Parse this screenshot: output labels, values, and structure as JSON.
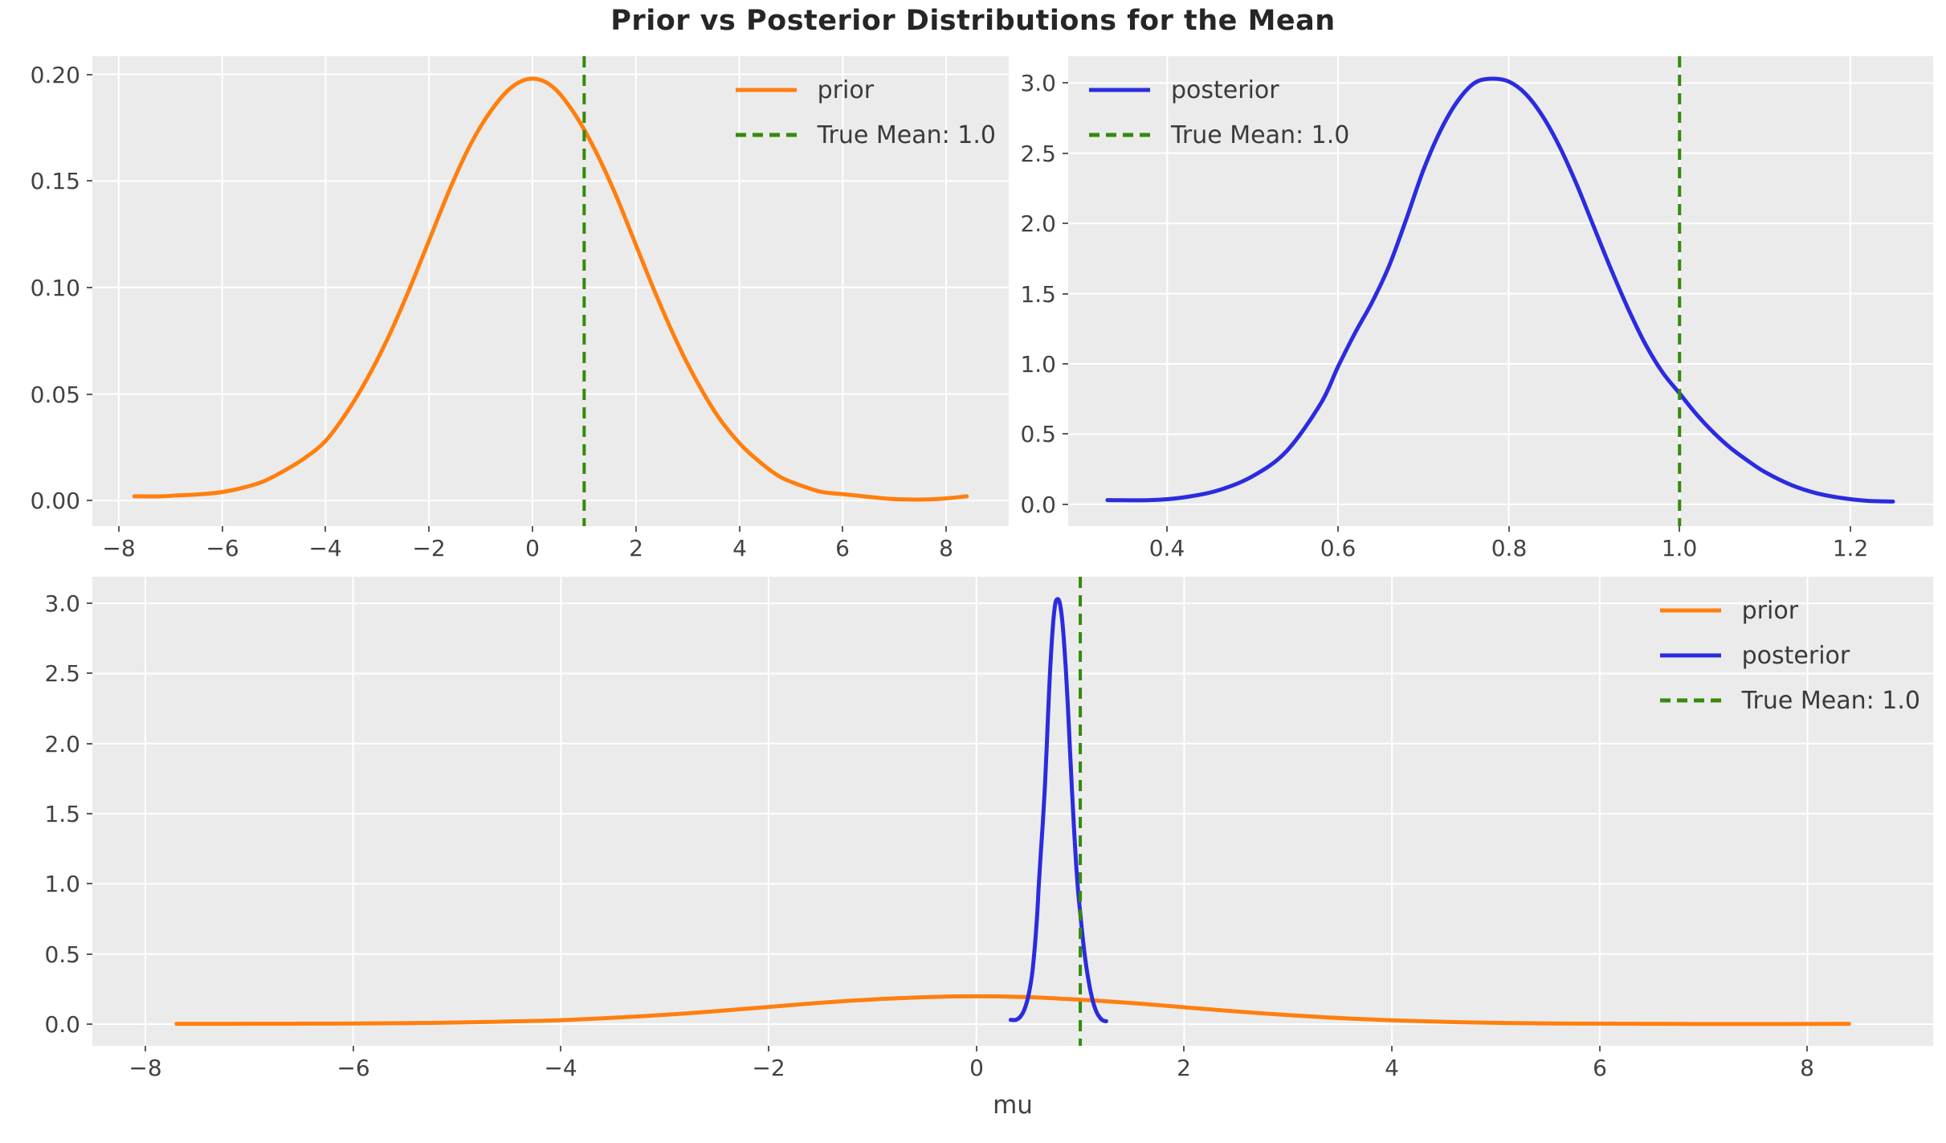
{
  "title": "Prior vs Posterior Distributions for the Mean",
  "xlabel_bottom": "mu",
  "colors": {
    "prior": "#ff7f0e",
    "posterior": "#2b2bdf",
    "true_mean": "#358a0d",
    "axes_bg": "#ebebeb",
    "grid": "#ffffff",
    "tick_text": "#424242",
    "title_text": "#262626"
  },
  "chart_data": {
    "type": "line",
    "title": "Prior vs Posterior Distributions for the Mean",
    "grid": "on",
    "true_mean_line": {
      "x": 1.0,
      "label": "True Mean: 1.0",
      "style": "dashed",
      "color_key": "true_mean"
    },
    "shared_series": {
      "prior": {
        "label": "prior",
        "color_key": "prior",
        "x": [
          -7.7,
          -7.2,
          -6.8,
          -6.4,
          -6.0,
          -5.6,
          -5.2,
          -4.8,
          -4.4,
          -4.0,
          -3.6,
          -3.2,
          -2.8,
          -2.4,
          -2.0,
          -1.6,
          -1.2,
          -0.8,
          -0.4,
          0.0,
          0.4,
          0.8,
          1.2,
          1.6,
          2.0,
          2.4,
          2.8,
          3.2,
          3.6,
          4.0,
          4.4,
          4.8,
          5.2,
          5.6,
          6.0,
          6.4,
          6.8,
          7.2,
          7.6,
          8.0,
          8.4
        ],
        "y": [
          0.002,
          0.002,
          0.0025,
          0.003,
          0.004,
          0.006,
          0.009,
          0.014,
          0.02,
          0.028,
          0.041,
          0.057,
          0.076,
          0.098,
          0.122,
          0.146,
          0.167,
          0.183,
          0.194,
          0.198,
          0.194,
          0.182,
          0.165,
          0.144,
          0.12,
          0.096,
          0.074,
          0.055,
          0.039,
          0.027,
          0.018,
          0.011,
          0.007,
          0.004,
          0.003,
          0.002,
          0.001,
          0.0005,
          0.0005,
          0.001,
          0.002
        ]
      },
      "posterior": {
        "label": "posterior",
        "color_key": "posterior",
        "x": [
          0.33,
          0.38,
          0.42,
          0.46,
          0.5,
          0.54,
          0.58,
          0.6,
          0.62,
          0.64,
          0.66,
          0.68,
          0.7,
          0.72,
          0.74,
          0.76,
          0.78,
          0.8,
          0.82,
          0.84,
          0.86,
          0.88,
          0.9,
          0.92,
          0.94,
          0.96,
          0.98,
          1.0,
          1.02,
          1.04,
          1.06,
          1.08,
          1.1,
          1.13,
          1.16,
          1.19,
          1.22,
          1.25
        ],
        "y": [
          0.03,
          0.03,
          0.05,
          0.1,
          0.2,
          0.38,
          0.72,
          0.98,
          1.22,
          1.44,
          1.7,
          2.03,
          2.38,
          2.66,
          2.87,
          3.0,
          3.03,
          3.01,
          2.92,
          2.76,
          2.54,
          2.27,
          1.97,
          1.67,
          1.39,
          1.14,
          0.94,
          0.79,
          0.64,
          0.51,
          0.4,
          0.31,
          0.23,
          0.14,
          0.08,
          0.045,
          0.025,
          0.02
        ]
      }
    },
    "panels": [
      {
        "name": "prior-top-left",
        "xlim": [
          -8.51,
          9.21
        ],
        "ylim": [
          -0.012,
          0.2085
        ],
        "xticks": {
          "values": [
            -8,
            -6,
            -4,
            -2,
            0,
            2,
            4,
            6,
            8
          ],
          "labels": [
            "−8",
            "−6",
            "−4",
            "−2",
            "0",
            "2",
            "4",
            "6",
            "8"
          ]
        },
        "yticks": {
          "values": [
            0.0,
            0.05,
            0.1,
            0.15,
            0.2
          ],
          "labels": [
            "0.00",
            "0.05",
            "0.10",
            "0.15",
            "0.20"
          ]
        },
        "xlabel": "",
        "series": [
          "prior"
        ],
        "legend": {
          "position": "upper-right",
          "entries": [
            {
              "label": "prior",
              "color_key": "prior",
              "dash": false
            },
            {
              "label": "True Mean: 1.0",
              "color_key": "true_mean",
              "dash": true
            }
          ]
        }
      },
      {
        "name": "posterior-top-right",
        "xlim": [
          0.284,
          1.297
        ],
        "ylim": [
          -0.155,
          3.19
        ],
        "xticks": {
          "values": [
            0.4,
            0.6,
            0.8,
            1.0,
            1.2
          ],
          "labels": [
            "0.4",
            "0.6",
            "0.8",
            "1.0",
            "1.2"
          ]
        },
        "yticks": {
          "values": [
            0.0,
            0.5,
            1.0,
            1.5,
            2.0,
            2.5,
            3.0
          ],
          "labels": [
            "0.0",
            "0.5",
            "1.0",
            "1.5",
            "2.0",
            "2.5",
            "3.0"
          ]
        },
        "xlabel": "",
        "series": [
          "posterior"
        ],
        "legend": {
          "position": "upper-left",
          "entries": [
            {
              "label": "posterior",
              "color_key": "posterior",
              "dash": false
            },
            {
              "label": "True Mean: 1.0",
              "color_key": "true_mean",
              "dash": true
            }
          ]
        }
      },
      {
        "name": "combined-bottom",
        "xlim": [
          -8.51,
          9.21
        ],
        "ylim": [
          -0.155,
          3.19
        ],
        "xticks": {
          "values": [
            -8,
            -6,
            -4,
            -2,
            0,
            2,
            4,
            6,
            8
          ],
          "labels": [
            "−8",
            "−6",
            "−4",
            "−2",
            "0",
            "2",
            "4",
            "6",
            "8"
          ]
        },
        "yticks": {
          "values": [
            0.0,
            0.5,
            1.0,
            1.5,
            2.0,
            2.5,
            3.0
          ],
          "labels": [
            "0.0",
            "0.5",
            "1.0",
            "1.5",
            "2.0",
            "2.5",
            "3.0"
          ]
        },
        "xlabel": "mu",
        "series": [
          "prior",
          "posterior"
        ],
        "legend": {
          "position": "upper-right",
          "entries": [
            {
              "label": "prior",
              "color_key": "prior",
              "dash": false
            },
            {
              "label": "posterior",
              "color_key": "posterior",
              "dash": false
            },
            {
              "label": "True Mean: 1.0",
              "color_key": "true_mean",
              "dash": true
            }
          ]
        }
      }
    ]
  }
}
